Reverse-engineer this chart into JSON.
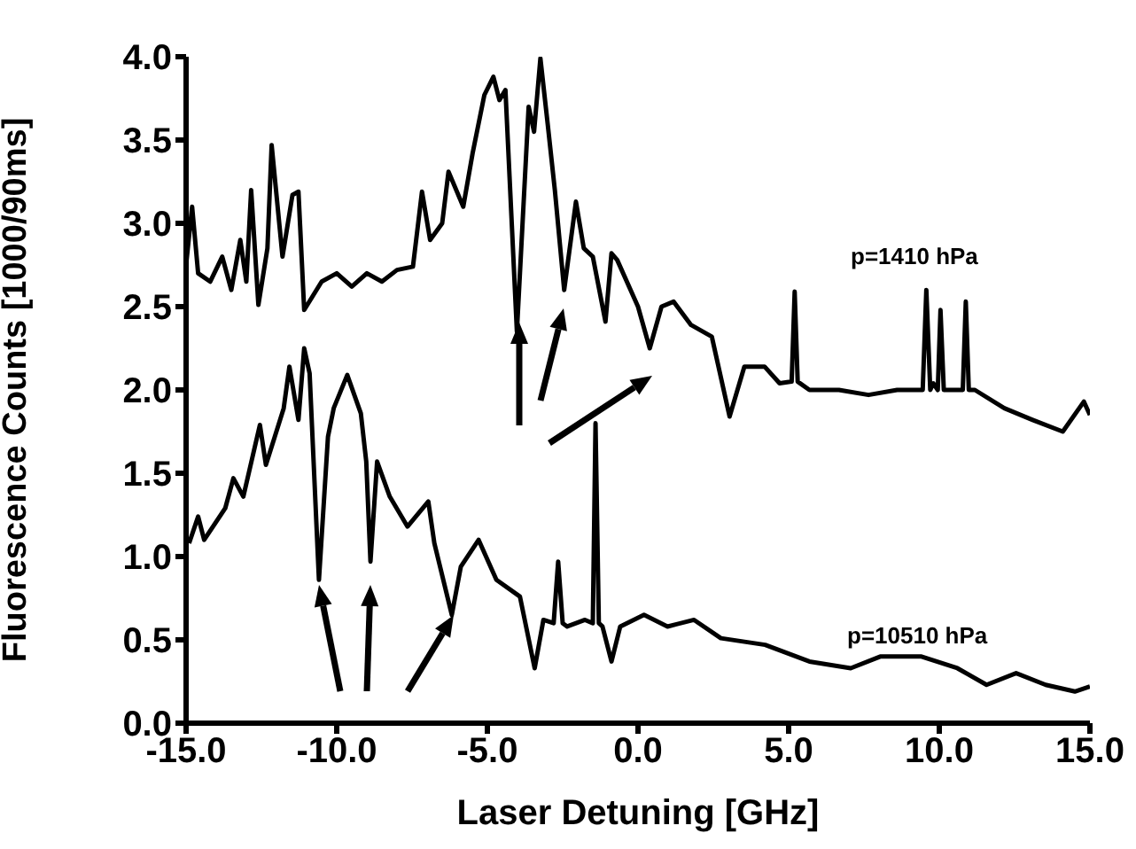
{
  "chart_data": {
    "type": "line",
    "xlabel": "Laser Detuning [GHz]",
    "ylabel": "Fluorescence Counts [1000/90ms]",
    "xlim": [
      -15,
      15
    ],
    "xticks": [
      {
        "value": -15,
        "label": "-15.0"
      },
      {
        "value": -10,
        "label": "-10.0"
      },
      {
        "value": -5,
        "label": "-5.0"
      },
      {
        "value": 0,
        "label": "0.0"
      },
      {
        "value": 5,
        "label": "5.0"
      },
      {
        "value": 10,
        "label": "10.0"
      },
      {
        "value": 15,
        "label": "15.0"
      }
    ],
    "ylim": [
      0,
      4
    ],
    "yticks": [
      {
        "value": 0,
        "label": "0.0"
      },
      {
        "value": 0.5,
        "label": "0.5"
      },
      {
        "value": 1,
        "label": "1.0"
      },
      {
        "value": 1.5,
        "label": "1.5"
      },
      {
        "value": 2,
        "label": "2.0"
      },
      {
        "value": 2.5,
        "label": "2.5"
      },
      {
        "value": 3,
        "label": "3.0"
      },
      {
        "value": 3.5,
        "label": "3.5"
      },
      {
        "value": 4,
        "label": "4.0"
      }
    ],
    "grid": false,
    "legend": false,
    "marker": "none",
    "line_style": "solid",
    "series": [
      {
        "color": "#000000",
        "x": [
          -15,
          -14.8,
          -14.6,
          -14.2,
          -13.8,
          -13.5,
          -13.2,
          -13.0,
          -12.84,
          -12.6,
          -12.3,
          -12.16,
          -11.8,
          -11.47,
          -11.27,
          -11.08,
          -10.5,
          -10.0,
          -9.5,
          -9.0,
          -8.5,
          -8.0,
          -7.47,
          -7.17,
          -6.9,
          -6.5,
          -6.29,
          -5.8,
          -5.49,
          -5.1,
          -4.8,
          -4.6,
          -4.4,
          -4.02,
          -3.63,
          -3.45,
          -3.24,
          -3.0,
          -2.76,
          -2.45,
          -2.06,
          -1.8,
          -1.5,
          -1.08,
          -0.88,
          -0.69,
          0.0,
          0.39,
          0.78,
          1.18,
          1.76,
          2.45,
          3.04,
          3.53,
          4.2,
          4.7,
          5.1,
          5.2,
          5.3,
          5.69,
          6.67,
          7.65,
          8.6,
          9.45,
          9.57,
          9.7,
          9.8,
          9.95,
          10.04,
          10.15,
          10.4,
          10.78,
          10.88,
          10.98,
          11.18,
          12.16,
          13.1,
          14.1,
          14.8,
          15
        ],
        "values": [
          2.75,
          3.1,
          2.7,
          2.65,
          2.8,
          2.6,
          2.9,
          2.65,
          3.2,
          2.51,
          2.85,
          3.47,
          2.8,
          3.17,
          3.19,
          2.48,
          2.65,
          2.7,
          2.62,
          2.7,
          2.65,
          2.72,
          2.74,
          3.19,
          2.9,
          3.0,
          3.31,
          3.1,
          3.42,
          3.77,
          3.88,
          3.74,
          3.8,
          2.35,
          3.7,
          3.55,
          3.99,
          3.6,
          3.2,
          2.6,
          3.13,
          2.85,
          2.8,
          2.41,
          2.82,
          2.78,
          2.5,
          2.25,
          2.5,
          2.53,
          2.39,
          2.32,
          1.84,
          2.14,
          2.14,
          2.04,
          2.05,
          2.59,
          2.05,
          2.0,
          2.0,
          1.97,
          2.0,
          2.0,
          2.6,
          2.0,
          2.04,
          2.0,
          2.48,
          2.0,
          2.0,
          2.0,
          2.53,
          2.0,
          2.0,
          1.89,
          1.82,
          1.75,
          1.93,
          1.85
        ]
      },
      {
        "color": "#000000",
        "x": [
          -14.9,
          -14.6,
          -14.4,
          -13.7,
          -13.43,
          -13.1,
          -12.55,
          -12.35,
          -11.76,
          -11.57,
          -11.27,
          -11.08,
          -10.9,
          -10.59,
          -10.29,
          -10.1,
          -9.65,
          -9.2,
          -9.02,
          -8.88,
          -8.66,
          -8.24,
          -7.65,
          -6.96,
          -6.76,
          -6.18,
          -5.88,
          -5.29,
          -4.7,
          -3.92,
          -3.43,
          -3.14,
          -2.8,
          -2.65,
          -2.5,
          -2.35,
          -1.76,
          -1.5,
          -1.41,
          -1.3,
          -1.18,
          -0.88,
          -0.59,
          0.2,
          0.98,
          1.86,
          2.75,
          4.22,
          5.69,
          7.06,
          8.04,
          9.41,
          10.6,
          11.57,
          12.55,
          13.53,
          14.5,
          15
        ],
        "values": [
          1.08,
          1.24,
          1.1,
          1.29,
          1.47,
          1.36,
          1.79,
          1.55,
          1.89,
          2.14,
          1.82,
          2.25,
          2.1,
          0.86,
          1.72,
          1.89,
          2.09,
          1.86,
          1.57,
          0.97,
          1.57,
          1.36,
          1.18,
          1.33,
          1.08,
          0.65,
          0.94,
          1.1,
          0.86,
          0.76,
          0.33,
          0.62,
          0.6,
          0.97,
          0.6,
          0.58,
          0.62,
          0.6,
          1.8,
          0.6,
          0.58,
          0.37,
          0.58,
          0.65,
          0.58,
          0.62,
          0.51,
          0.47,
          0.37,
          0.33,
          0.4,
          0.4,
          0.33,
          0.23,
          0.3,
          0.23,
          0.19,
          0.22
        ]
      }
    ],
    "annotations": [
      "p=1410 hPa",
      "p=10510 hPa"
    ]
  }
}
